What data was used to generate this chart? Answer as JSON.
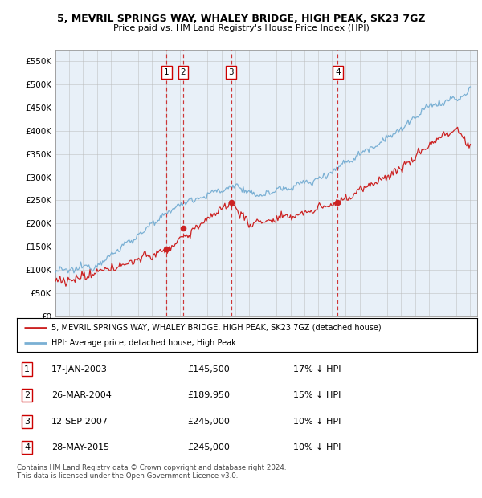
{
  "title": "5, MEVRIL SPRINGS WAY, WHALEY BRIDGE, HIGH PEAK, SK23 7GZ",
  "subtitle": "Price paid vs. HM Land Registry's House Price Index (HPI)",
  "ylim": [
    0,
    575000
  ],
  "yticks": [
    0,
    50000,
    100000,
    150000,
    200000,
    250000,
    300000,
    350000,
    400000,
    450000,
    500000,
    550000
  ],
  "ytick_labels": [
    "£0",
    "£50K",
    "£100K",
    "£150K",
    "£200K",
    "£250K",
    "£300K",
    "£350K",
    "£400K",
    "£450K",
    "£500K",
    "£550K"
  ],
  "hpi_color": "#7ab0d4",
  "price_color": "#cc2222",
  "vline_color": "#cc2222",
  "bg_color": "#e8f0f8",
  "grid_color": "#bbbbbb",
  "sale_dates": [
    2003.04,
    2004.23,
    2007.7,
    2015.41
  ],
  "sale_prices": [
    145500,
    189950,
    245000,
    245000
  ],
  "sale_labels": [
    "1",
    "2",
    "3",
    "4"
  ],
  "legend_property_label": "5, MEVRIL SPRINGS WAY, WHALEY BRIDGE, HIGH PEAK, SK23 7GZ (detached house)",
  "legend_hpi_label": "HPI: Average price, detached house, High Peak",
  "table_rows": [
    {
      "num": "1",
      "date": "17-JAN-2003",
      "price": "£145,500",
      "pct": "17% ↓ HPI"
    },
    {
      "num": "2",
      "date": "26-MAR-2004",
      "price": "£189,950",
      "pct": "15% ↓ HPI"
    },
    {
      "num": "3",
      "date": "12-SEP-2007",
      "price": "£245,000",
      "pct": "10% ↓ HPI"
    },
    {
      "num": "4",
      "date": "28-MAY-2015",
      "price": "£245,000",
      "pct": "10% ↓ HPI"
    }
  ],
  "footer": "Contains HM Land Registry data © Crown copyright and database right 2024.\nThis data is licensed under the Open Government Licence v3.0.",
  "xmin": 1995,
  "xmax": 2025.5
}
